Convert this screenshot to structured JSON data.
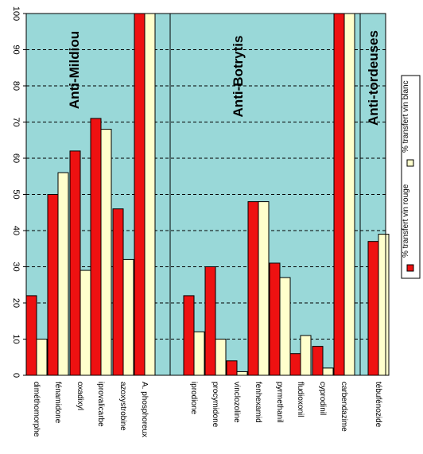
{
  "chart_data": {
    "type": "bar",
    "ylim": [
      0,
      100
    ],
    "yticks": [
      0,
      10,
      20,
      30,
      40,
      50,
      60,
      70,
      80,
      90,
      100
    ],
    "grid": true,
    "legend_position": "right",
    "colors": {
      "plot_background": "#99d8d8",
      "rouge": "#ee1111",
      "blanc": "#ffffcc",
      "outline": "#000000"
    },
    "categories": [
      "diméthomorphe",
      "fénamidone",
      "oxadixyl",
      "iprovalicarbe",
      "azoxystrobine",
      "A. phosphoreux",
      "iprodione",
      "procymidone",
      "vinclozoline",
      "fenhexamid",
      "pyrmethanil",
      "fludioxonil",
      "cyprodinil",
      "carbendazime",
      "tébufénozide"
    ],
    "groups": [
      {
        "label": "Anti-Mildiou"
      },
      {
        "label": "Anti-Botrytis"
      },
      {
        "label": "Anti-tordeuses"
      }
    ],
    "series": [
      {
        "name": "% transfert vin rouge",
        "values": [
          22,
          50,
          62,
          71,
          46,
          100,
          22,
          30,
          4,
          48,
          31,
          6,
          8,
          100,
          37
        ]
      },
      {
        "name": "% transfert vin blanc",
        "values": [
          10,
          56,
          29,
          68,
          32,
          100,
          12,
          10,
          1,
          48,
          27,
          11,
          2,
          100,
          39
        ]
      }
    ]
  }
}
